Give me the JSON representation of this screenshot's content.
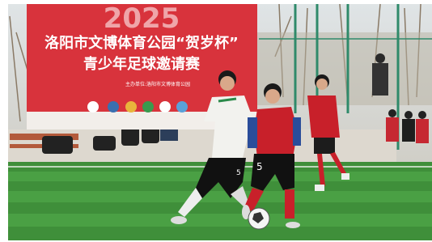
{
  "banner": {
    "year": "2025",
    "line1": "洛阳市文博体育公园“贺岁杯”",
    "line2": "青少年足球邀请赛",
    "organizer": "主办单位:洛阳市文博体育公园"
  },
  "players": [
    {
      "number": "5"
    },
    {
      "number": "5"
    }
  ]
}
